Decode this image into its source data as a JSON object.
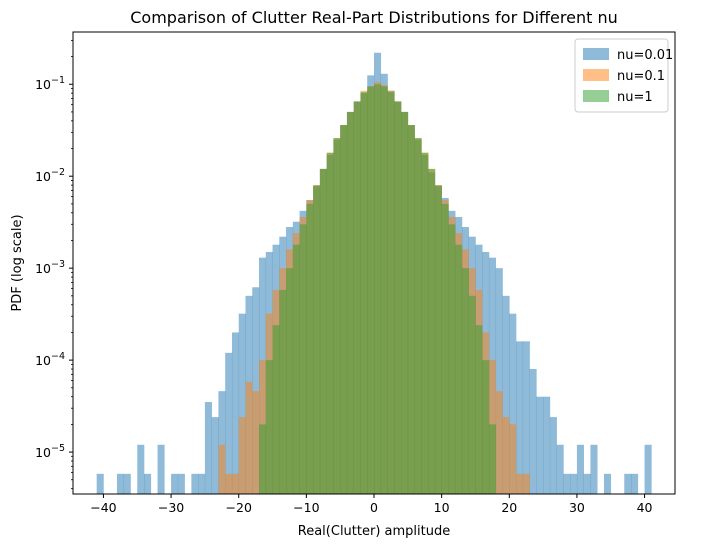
{
  "chart_data": {
    "type": "bar",
    "title": "Comparison of Clutter Real-Part Distributions for Different nu",
    "xlabel": "Real(Clutter) amplitude",
    "ylabel": "PDF (log scale)",
    "x_scale": "linear",
    "y_scale": "log",
    "xlim": [
      -44.5,
      44.5
    ],
    "ylim": [
      3.5e-06,
      0.37
    ],
    "x_ticks": [
      -40,
      -30,
      -20,
      -10,
      0,
      10,
      20,
      30,
      40
    ],
    "x_tick_labels": [
      "−40",
      "−30",
      "−20",
      "−10",
      "0",
      "10",
      "20",
      "30",
      "40"
    ],
    "y_ticks": [
      1e-05,
      0.0001,
      0.001,
      0.01,
      0.1
    ],
    "y_tick_base": "10",
    "y_tick_exponents": [
      "−5",
      "−4",
      "−3",
      "−2",
      "−1"
    ],
    "grid": false,
    "legend_position": "top-right",
    "bin_width": 1,
    "series": [
      {
        "name": "nu=0.01",
        "color": "#1f77b4",
        "alpha": 0.5,
        "bins": [
          [
            -41,
            5.8e-06
          ],
          [
            -38,
            5.8e-06
          ],
          [
            -37,
            5.8e-06
          ],
          [
            -35,
            1.2e-05
          ],
          [
            -34,
            5.8e-06
          ],
          [
            -32,
            1.2e-05
          ],
          [
            -30,
            5.8e-06
          ],
          [
            -29,
            5.8e-06
          ],
          [
            -27,
            5.8e-06
          ],
          [
            -26,
            5.8e-06
          ],
          [
            -25,
            3.5e-05
          ],
          [
            -24,
            2.4e-05
          ],
          [
            -23,
            4.6e-05
          ],
          [
            -22,
            0.00012
          ],
          [
            -21,
            0.0002
          ],
          [
            -20,
            0.00032
          ],
          [
            -19,
            0.0005
          ],
          [
            -18,
            0.00062
          ],
          [
            -17,
            0.0013
          ],
          [
            -16,
            0.0015
          ],
          [
            -15,
            0.0018
          ],
          [
            -14,
            0.0022
          ],
          [
            -13,
            0.0028
          ],
          [
            -12,
            0.0032
          ],
          [
            -11,
            0.0042
          ],
          [
            -10,
            0.0055
          ],
          [
            -9,
            0.008
          ],
          [
            -8,
            0.012
          ],
          [
            -7,
            0.017
          ],
          [
            -6,
            0.025
          ],
          [
            -5,
            0.036
          ],
          [
            -4,
            0.05
          ],
          [
            -3,
            0.065
          ],
          [
            -2,
            0.08
          ],
          [
            -1,
            0.125
          ],
          [
            0,
            0.22
          ],
          [
            1,
            0.13
          ],
          [
            2,
            0.085
          ],
          [
            3,
            0.065
          ],
          [
            4,
            0.05
          ],
          [
            5,
            0.036
          ],
          [
            6,
            0.025
          ],
          [
            7,
            0.017
          ],
          [
            8,
            0.011
          ],
          [
            9,
            0.008
          ],
          [
            10,
            0.0058
          ],
          [
            11,
            0.0042
          ],
          [
            12,
            0.0036
          ],
          [
            13,
            0.0028
          ],
          [
            14,
            0.0022
          ],
          [
            15,
            0.0018
          ],
          [
            16,
            0.0015
          ],
          [
            17,
            0.0013
          ],
          [
            18,
            0.001
          ],
          [
            19,
            0.0005
          ],
          [
            20,
            0.00032
          ],
          [
            21,
            0.00016
          ],
          [
            22,
            0.00016
          ],
          [
            23,
            8e-05
          ],
          [
            24,
            4e-05
          ],
          [
            25,
            4e-05
          ],
          [
            26,
            2.4e-05
          ],
          [
            27,
            1.2e-05
          ],
          [
            28,
            5.8e-06
          ],
          [
            29,
            5.8e-06
          ],
          [
            30,
            1.2e-05
          ],
          [
            31,
            5.8e-06
          ],
          [
            32,
            1.2e-05
          ],
          [
            34,
            5.8e-06
          ],
          [
            37,
            5.8e-06
          ],
          [
            38,
            5.8e-06
          ],
          [
            40,
            1.2e-05
          ]
        ]
      },
      {
        "name": "nu=0.1",
        "color": "#ff7f0e",
        "alpha": 0.5,
        "bins": [
          [
            -23,
            1.2e-05
          ],
          [
            -22,
            5.8e-06
          ],
          [
            -21,
            5.8e-06
          ],
          [
            -20,
            2.4e-05
          ],
          [
            -19,
            5.8e-05
          ],
          [
            -18,
            4.6e-05
          ],
          [
            -17,
            0.0001
          ],
          [
            -16,
            0.00032
          ],
          [
            -15,
            0.00058
          ],
          [
            -14,
            0.001
          ],
          [
            -13,
            0.0016
          ],
          [
            -12,
            0.0024
          ],
          [
            -11,
            0.0036
          ],
          [
            -10,
            0.0055
          ],
          [
            -9,
            0.008
          ],
          [
            -8,
            0.012
          ],
          [
            -7,
            0.018
          ],
          [
            -6,
            0.026
          ],
          [
            -5,
            0.036
          ],
          [
            -4,
            0.05
          ],
          [
            -3,
            0.065
          ],
          [
            -2,
            0.085
          ],
          [
            -1,
            0.095
          ],
          [
            0,
            0.105
          ],
          [
            1,
            0.098
          ],
          [
            2,
            0.085
          ],
          [
            3,
            0.065
          ],
          [
            4,
            0.05
          ],
          [
            5,
            0.036
          ],
          [
            6,
            0.026
          ],
          [
            7,
            0.018
          ],
          [
            8,
            0.012
          ],
          [
            9,
            0.008
          ],
          [
            10,
            0.0055
          ],
          [
            11,
            0.0036
          ],
          [
            12,
            0.0024
          ],
          [
            13,
            0.0016
          ],
          [
            14,
            0.001
          ],
          [
            15,
            0.00058
          ],
          [
            16,
            0.0002
          ],
          [
            17,
            0.0001
          ],
          [
            18,
            4.6e-05
          ],
          [
            19,
            2.4e-05
          ],
          [
            20,
            2e-05
          ],
          [
            21,
            5.8e-06
          ],
          [
            22,
            5.8e-06
          ]
        ]
      },
      {
        "name": "nu=1",
        "color": "#2ca02c",
        "alpha": 0.5,
        "bins": [
          [
            -17,
            2e-05
          ],
          [
            -16,
            0.0001
          ],
          [
            -15,
            0.00024
          ],
          [
            -14,
            0.00058
          ],
          [
            -13,
            0.001
          ],
          [
            -12,
            0.0018
          ],
          [
            -11,
            0.003
          ],
          [
            -10,
            0.005
          ],
          [
            -9,
            0.0078
          ],
          [
            -8,
            0.012
          ],
          [
            -7,
            0.018
          ],
          [
            -6,
            0.026
          ],
          [
            -5,
            0.036
          ],
          [
            -4,
            0.05
          ],
          [
            -3,
            0.065
          ],
          [
            -2,
            0.082
          ],
          [
            -1,
            0.095
          ],
          [
            0,
            0.1
          ],
          [
            1,
            0.095
          ],
          [
            2,
            0.082
          ],
          [
            3,
            0.065
          ],
          [
            4,
            0.05
          ],
          [
            5,
            0.036
          ],
          [
            6,
            0.026
          ],
          [
            7,
            0.018
          ],
          [
            8,
            0.012
          ],
          [
            9,
            0.0078
          ],
          [
            10,
            0.005
          ],
          [
            11,
            0.003
          ],
          [
            12,
            0.0018
          ],
          [
            13,
            0.001
          ],
          [
            14,
            0.0005
          ],
          [
            15,
            0.00024
          ],
          [
            16,
            0.0001
          ],
          [
            17,
            2e-05
          ]
        ]
      }
    ]
  }
}
